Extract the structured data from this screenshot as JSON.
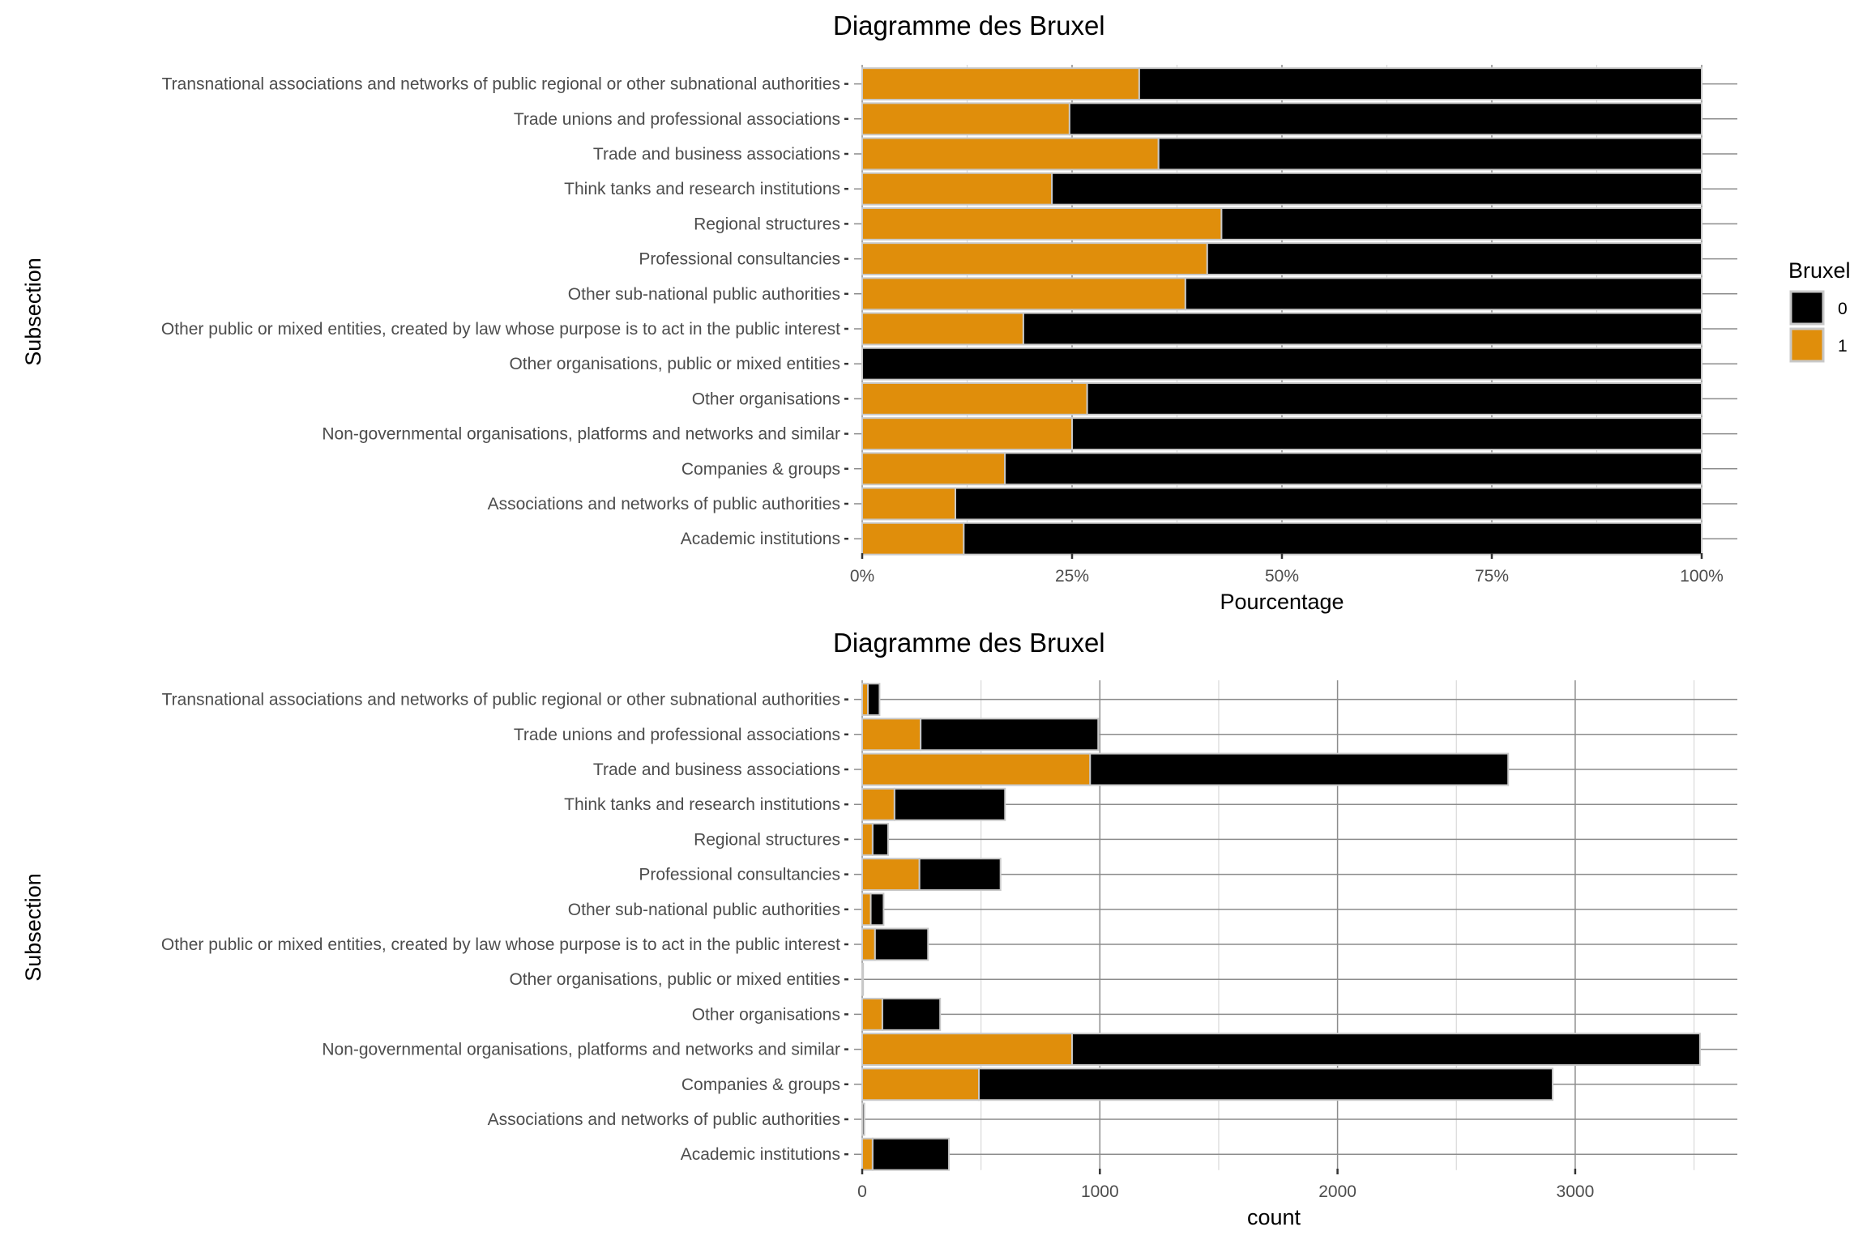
{
  "legend": {
    "title": "Bruxel",
    "items": [
      {
        "label": "0",
        "color": "#000000"
      },
      {
        "label": "1",
        "color": "#E08E0B"
      }
    ]
  },
  "chart_data": [
    {
      "type": "bar",
      "orientation": "horizontal",
      "stacked": "fill",
      "title": "Diagramme des Bruxel",
      "xlabel": "Pourcentage",
      "ylabel": "Subsection",
      "xlim": [
        0,
        1
      ],
      "xticks": [
        "0%",
        "25%",
        "50%",
        "75%",
        "100%"
      ],
      "xtick_values": [
        0,
        0.25,
        0.5,
        0.75,
        1
      ],
      "categories": [
        "Transnational associations and networks of public regional or other subnational authorities",
        "Trade unions and professional associations",
        "Trade and business associations",
        "Think tanks and research institutions",
        "Regional structures",
        "Professional consultancies",
        "Other sub-national public authorities",
        "Other public or mixed entities, created by law whose purpose is to act in the public interest",
        "Other organisations, public or mixed entities",
        "Other organisations",
        "Non-governmental organisations, platforms and networks and similar",
        "Companies & groups",
        "Associations and networks of public authorities",
        "Academic institutions"
      ],
      "series": [
        {
          "name": "1",
          "values": [
            0.33,
            0.247,
            0.353,
            0.226,
            0.428,
            0.411,
            0.385,
            0.192,
            0.0,
            0.268,
            0.25,
            0.17,
            0.111,
            0.121
          ]
        },
        {
          "name": "0",
          "values": [
            0.67,
            0.753,
            0.647,
            0.774,
            0.572,
            0.589,
            0.615,
            0.808,
            1.0,
            0.732,
            0.75,
            0.83,
            0.889,
            0.879
          ]
        }
      ],
      "legend": "right"
    },
    {
      "type": "bar",
      "orientation": "horizontal",
      "stacked": "stack",
      "title": "Diagramme des Bruxel",
      "xlabel": "count",
      "ylabel": "Subsection",
      "xlim": [
        0,
        3700
      ],
      "xticks": [
        "0",
        "1000",
        "2000",
        "3000"
      ],
      "xtick_values": [
        0,
        1000,
        2000,
        3000
      ],
      "categories": [
        "Transnational associations and networks of public regional or other subnational authorities",
        "Trade unions and professional associations",
        "Trade and business associations",
        "Think tanks and research institutions",
        "Regional structures",
        "Professional consultancies",
        "Other sub-national public authorities",
        "Other public or mixed entities, created by law whose purpose is to act in the public interest",
        "Other organisations, public or mixed entities",
        "Other organisations",
        "Non-governmental organisations, platforms and networks and similar",
        "Companies & groups",
        "Associations and networks of public authorities",
        "Academic institutions"
      ],
      "series": [
        {
          "name": "1",
          "values": [
            24,
            246,
            959,
            136,
            44,
            241,
            36,
            54,
            0,
            85,
            883,
            491,
            1,
            44
          ]
        },
        {
          "name": "0",
          "values": [
            49,
            747,
            1759,
            465,
            65,
            341,
            54,
            223,
            4,
            243,
            2642,
            2414,
            8,
            321
          ]
        }
      ]
    }
  ]
}
